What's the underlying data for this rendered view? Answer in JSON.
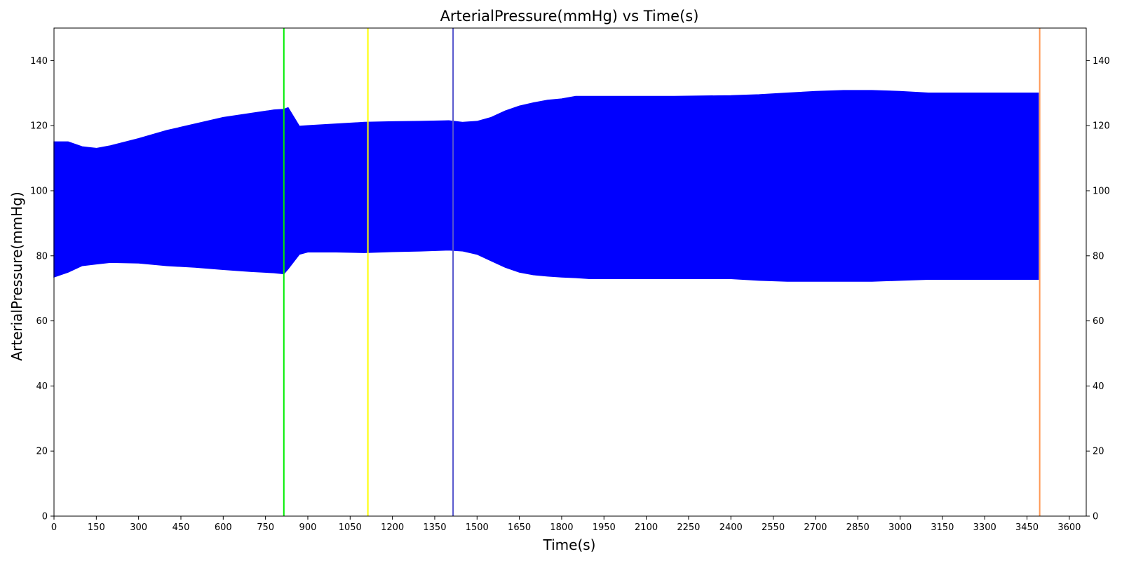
{
  "chart_data": {
    "type": "area",
    "title": "ArterialPressure(mmHg) vs Time(s)",
    "xlabel": "Time(s)",
    "ylabel": "ArterialPressure(mmHg)",
    "xlim": [
      0,
      3660
    ],
    "ylim": [
      0,
      150
    ],
    "x_ticks": [
      0,
      150,
      300,
      450,
      600,
      750,
      900,
      1050,
      1200,
      1350,
      1500,
      1650,
      1800,
      1950,
      2100,
      2250,
      2400,
      2550,
      2700,
      2850,
      3000,
      3150,
      3300,
      3450,
      3600
    ],
    "y_ticks": [
      0,
      20,
      40,
      60,
      80,
      100,
      120,
      140
    ],
    "y_ticks_right": true,
    "grid": false,
    "legend": "none",
    "series_color": "#0000ff",
    "series": [
      {
        "kind": "envelope",
        "x": [
          0,
          50,
          100,
          150,
          200,
          300,
          400,
          500,
          600,
          700,
          780,
          815,
          830,
          870,
          900,
          1000,
          1100,
          1200,
          1300,
          1400,
          1450,
          1500,
          1550,
          1600,
          1650,
          1700,
          1750,
          1800,
          1850,
          1900,
          2000,
          2200,
          2400,
          2500,
          2600,
          2700,
          2800,
          2900,
          3000,
          3100,
          3200,
          3300,
          3400,
          3490
        ],
        "upper": [
          115,
          115,
          113.5,
          113,
          113.8,
          116,
          118.5,
          120.5,
          122.5,
          123.8,
          124.8,
          125,
          125.5,
          119.8,
          120,
          120.5,
          121,
          121.2,
          121.3,
          121.5,
          121,
          121.3,
          122.5,
          124.5,
          126,
          127,
          127.8,
          128.2,
          129,
          129,
          129,
          129,
          129.2,
          129.5,
          130,
          130.5,
          130.8,
          130.8,
          130.5,
          130,
          130,
          130,
          130,
          130
        ],
        "lower": [
          73.5,
          75,
          77,
          77.5,
          78,
          77.8,
          77,
          76.5,
          75.8,
          75.2,
          74.8,
          74.5,
          76,
          80.5,
          81.2,
          81.2,
          81,
          81.3,
          81.5,
          81.8,
          81.5,
          80.5,
          78.5,
          76.5,
          75,
          74.2,
          73.8,
          73.5,
          73.3,
          73,
          73,
          73,
          73,
          72.5,
          72.2,
          72.2,
          72.2,
          72.2,
          72.5,
          72.8,
          72.8,
          72.8,
          72.8,
          72.8
        ]
      }
    ],
    "vlines": [
      {
        "x": 815,
        "color": "#00ee00"
      },
      {
        "x": 1113,
        "color": "#ffff00"
      },
      {
        "x": 1415,
        "color": "#5555cc"
      },
      {
        "x": 3495,
        "color": "#ff9955"
      }
    ]
  }
}
